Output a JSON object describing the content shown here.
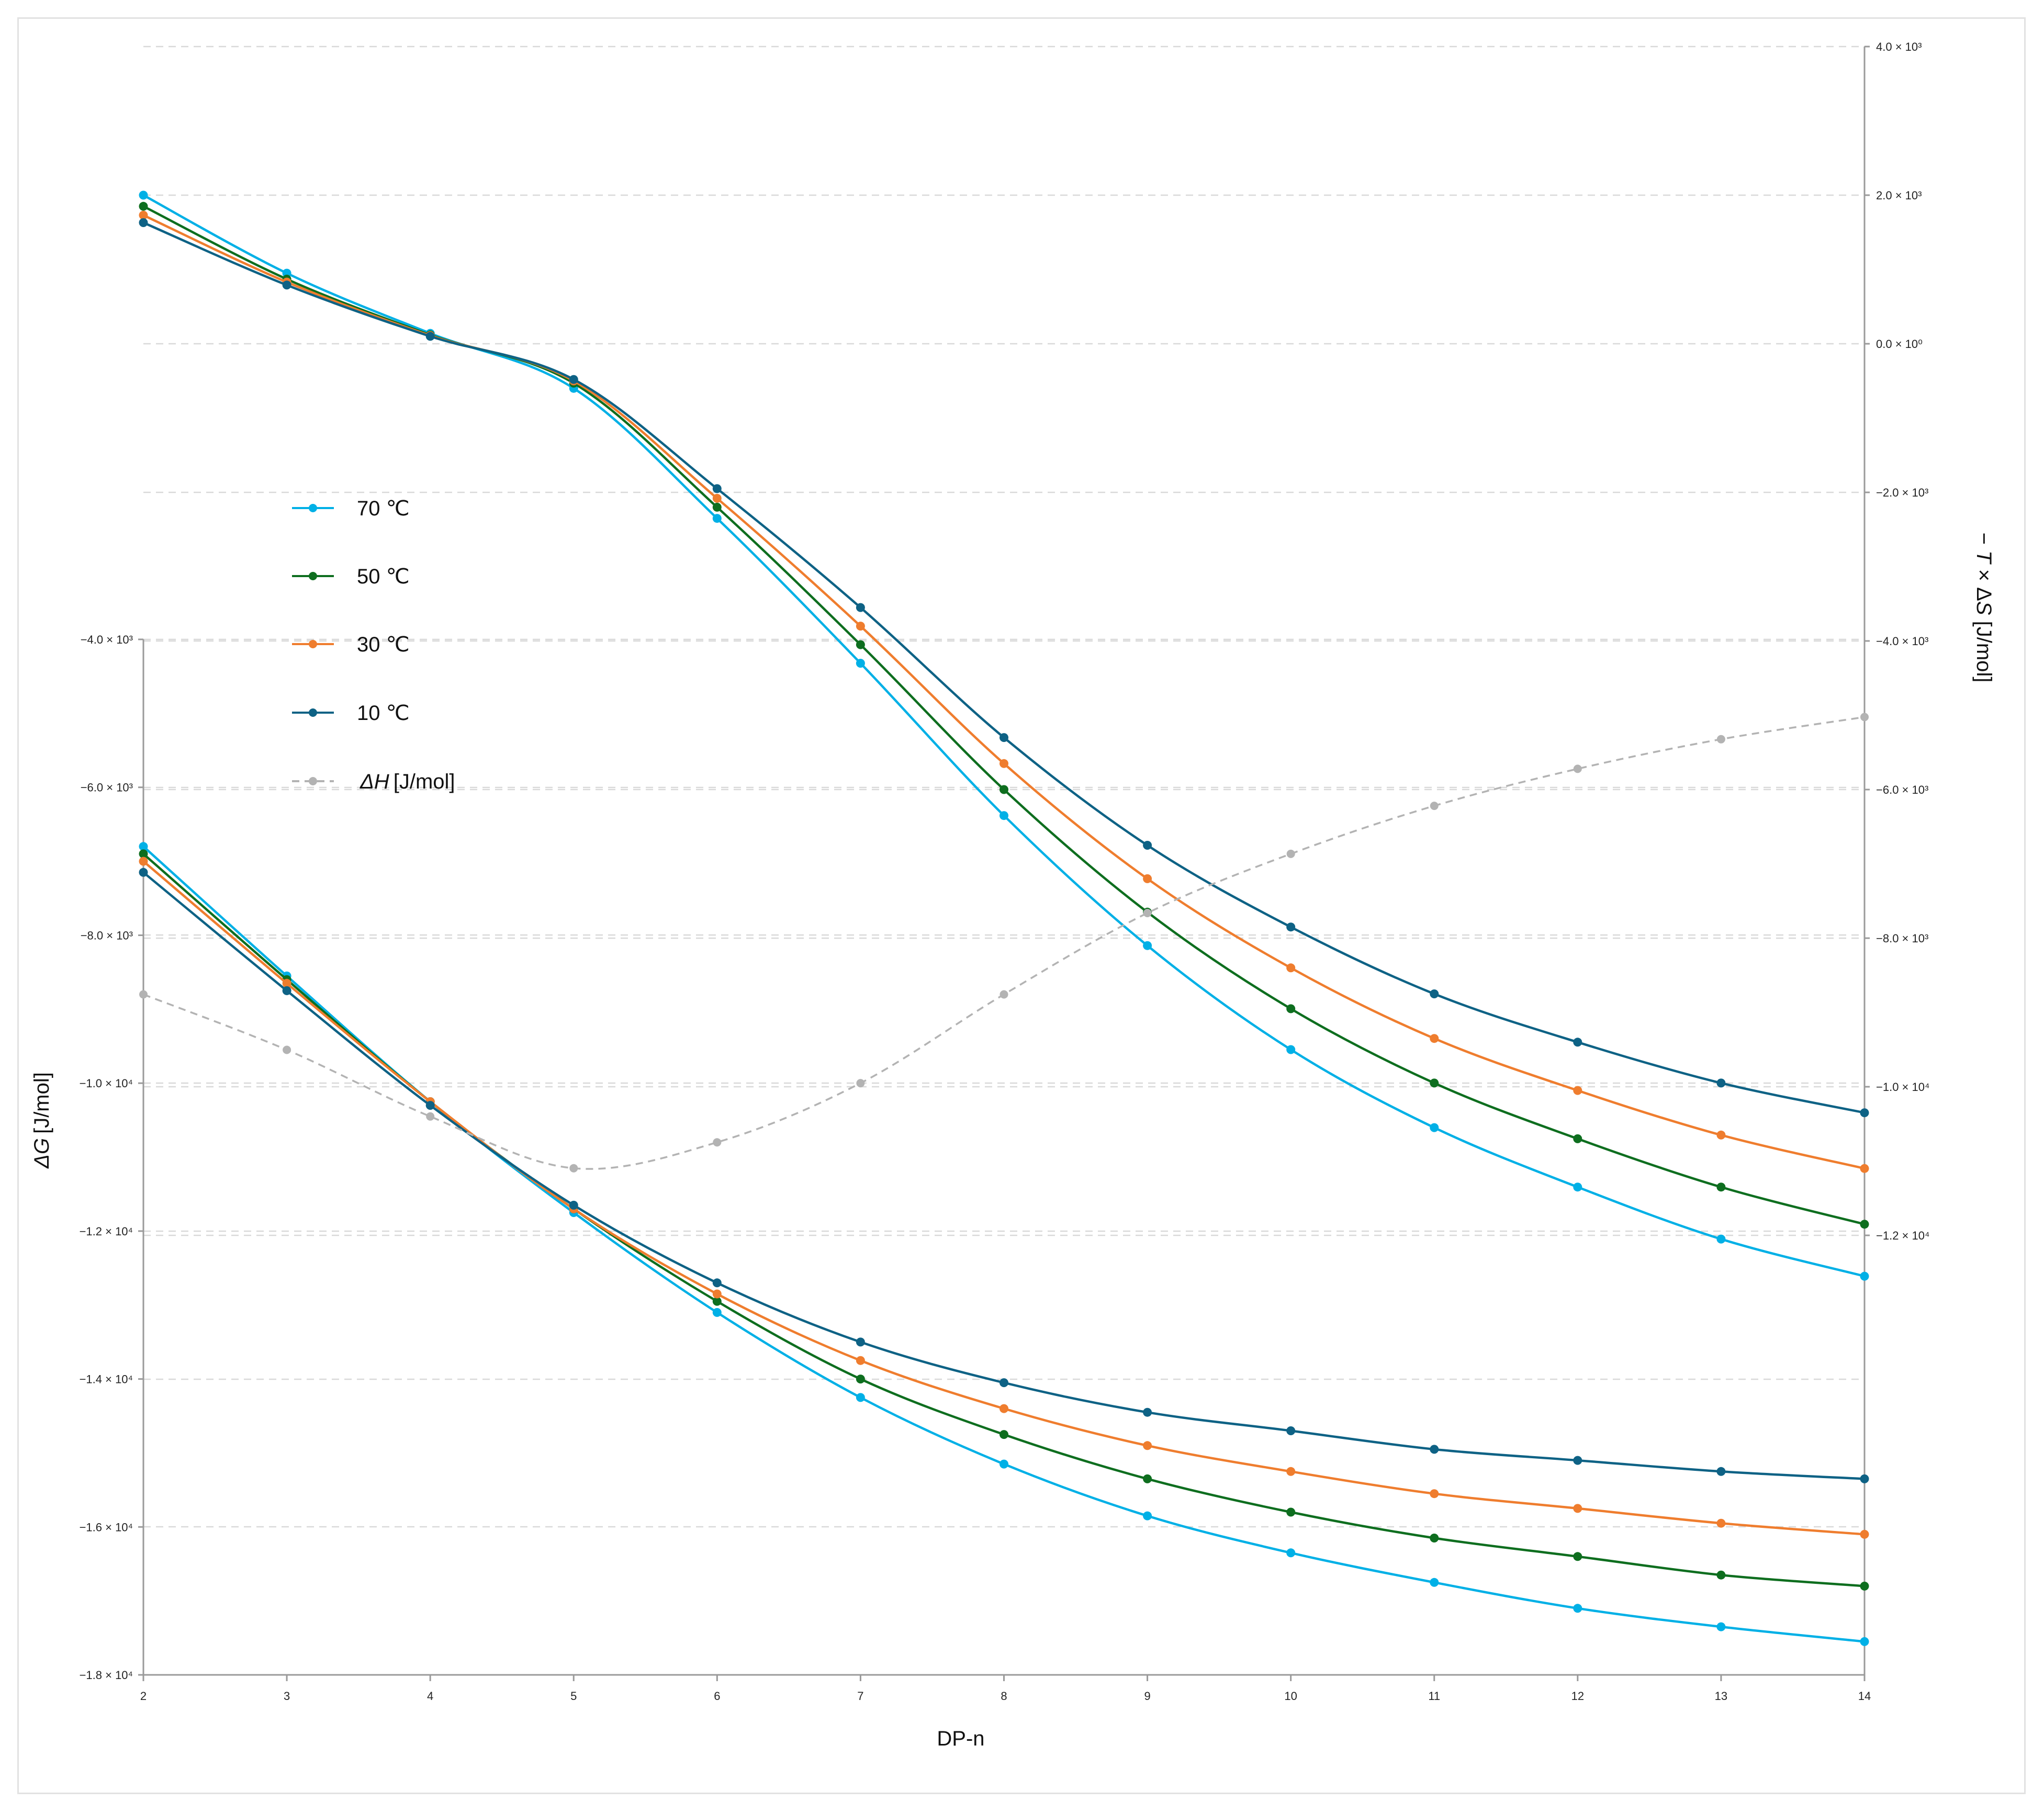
{
  "chart_data": {
    "type": "line",
    "title": "",
    "x": [
      2,
      3,
      4,
      5,
      6,
      7,
      8,
      9,
      10,
      11,
      12,
      13,
      14
    ],
    "xlabel": "DP-n",
    "left_axis": {
      "label_symbol": "ΔG",
      "label_unit": "[J/mol]",
      "ylim": [
        -18000,
        -4000
      ],
      "ticks": [
        -4000,
        -6000,
        -8000,
        -10000,
        -12000,
        -14000,
        -16000,
        -18000
      ],
      "tick_labels": [
        "−4.0 × 10³",
        "−6.0 × 10³",
        "−8.0 × 10³",
        "−1.0 × 10⁴",
        "−1.2 × 10⁴",
        "−1.4 × 10⁴",
        "−1.6 × 10⁴",
        "−1.8 × 10⁴"
      ]
    },
    "right_axis": {
      "label_prefix": "− ",
      "label_symbol_1": "T",
      "label_mid": " × Δ",
      "label_symbol_2": "S",
      "label_unit": " [J/mol]",
      "ylim": [
        -12000,
        4000
      ],
      "ticks": [
        4000,
        2000,
        0,
        -2000,
        -4000,
        -6000,
        -8000,
        -10000,
        -12000
      ],
      "tick_labels": [
        "4.0 × 10³",
        "2.0 × 10³",
        "0.0 × 10⁰",
        "−2.0 × 10³",
        "−4.0 × 10³",
        "−6.0 × 10³",
        "−8.0 × 10³",
        "−1.0 × 10⁴",
        "−1.2 × 10⁴"
      ]
    },
    "legend": {
      "position": "upper-left",
      "entries": [
        {
          "label": "70 ℃",
          "color": "#00b0e6",
          "style": "solid"
        },
        {
          "label": "50 ℃",
          "color": "#0e6e1f",
          "style": "solid"
        },
        {
          "label": "30 ℃",
          "color": "#ef7d2e",
          "style": "solid"
        },
        {
          "label": "10 ℃",
          "color": "#0e6285",
          "style": "solid"
        },
        {
          "label": "[J/mol]",
          "symbol": "ΔH",
          "color": "#b3b3b3",
          "style": "dashed"
        }
      ]
    },
    "series": [
      {
        "name": "70 ℃",
        "axis": "right",
        "group": "-TΔS",
        "color": "#00b0e6",
        "values": [
          2000,
          950,
          140,
          -600,
          -2350,
          -4300,
          -6350,
          -8100,
          -9500,
          -10550,
          -11350,
          -12050,
          -12550
        ]
      },
      {
        "name": "50 ℃",
        "axis": "right",
        "group": "-TΔS",
        "color": "#0e6e1f",
        "values": [
          1850,
          870,
          120,
          -530,
          -2200,
          -4050,
          -6000,
          -7650,
          -8950,
          -9950,
          -10700,
          -11350,
          -11850
        ]
      },
      {
        "name": "30 ℃",
        "axis": "right",
        "group": "-TΔS",
        "color": "#ef7d2e",
        "values": [
          1730,
          830,
          110,
          -500,
          -2080,
          -3800,
          -5650,
          -7200,
          -8400,
          -9350,
          -10050,
          -10650,
          -11100
        ]
      },
      {
        "name": "10 ℃",
        "axis": "right",
        "group": "-TΔS",
        "color": "#0e6285",
        "values": [
          1630,
          790,
          100,
          -480,
          -1950,
          -3550,
          -5300,
          -6750,
          -7850,
          -8750,
          -9400,
          -9950,
          -10350
        ]
      },
      {
        "name": "70 ℃",
        "axis": "left",
        "group": "ΔG",
        "color": "#00b0e6",
        "values": [
          -6800,
          -8550,
          -10250,
          -11750,
          -13100,
          -14250,
          -15150,
          -15850,
          -16350,
          -16750,
          -17100,
          -17350,
          -17550
        ]
      },
      {
        "name": "50 ℃",
        "axis": "left",
        "group": "ΔG",
        "color": "#0e6e1f",
        "values": [
          -6900,
          -8600,
          -10250,
          -11700,
          -12950,
          -14000,
          -14750,
          -15350,
          -15800,
          -16150,
          -16400,
          -16650,
          -16800
        ]
      },
      {
        "name": "30 ℃",
        "axis": "left",
        "group": "ΔG",
        "color": "#ef7d2e",
        "values": [
          -7000,
          -8650,
          -10250,
          -11700,
          -12850,
          -13750,
          -14400,
          -14900,
          -15250,
          -15550,
          -15750,
          -15950,
          -16100
        ]
      },
      {
        "name": "10 ℃",
        "axis": "left",
        "group": "ΔG",
        "color": "#0e6285",
        "values": [
          -7150,
          -8750,
          -10300,
          -11650,
          -12700,
          -13500,
          -14050,
          -14450,
          -14700,
          -14950,
          -15100,
          -15250,
          -15350
        ]
      },
      {
        "name": "ΔH [J/mol]",
        "axis": "left",
        "group": "ΔH",
        "color": "#b3b3b3",
        "dashed": true,
        "values": [
          -8800,
          -9550,
          -10450,
          -11150,
          -10800,
          -10000,
          -8800,
          -7700,
          -6900,
          -6250,
          -5750,
          -5350,
          -5050
        ]
      }
    ]
  }
}
